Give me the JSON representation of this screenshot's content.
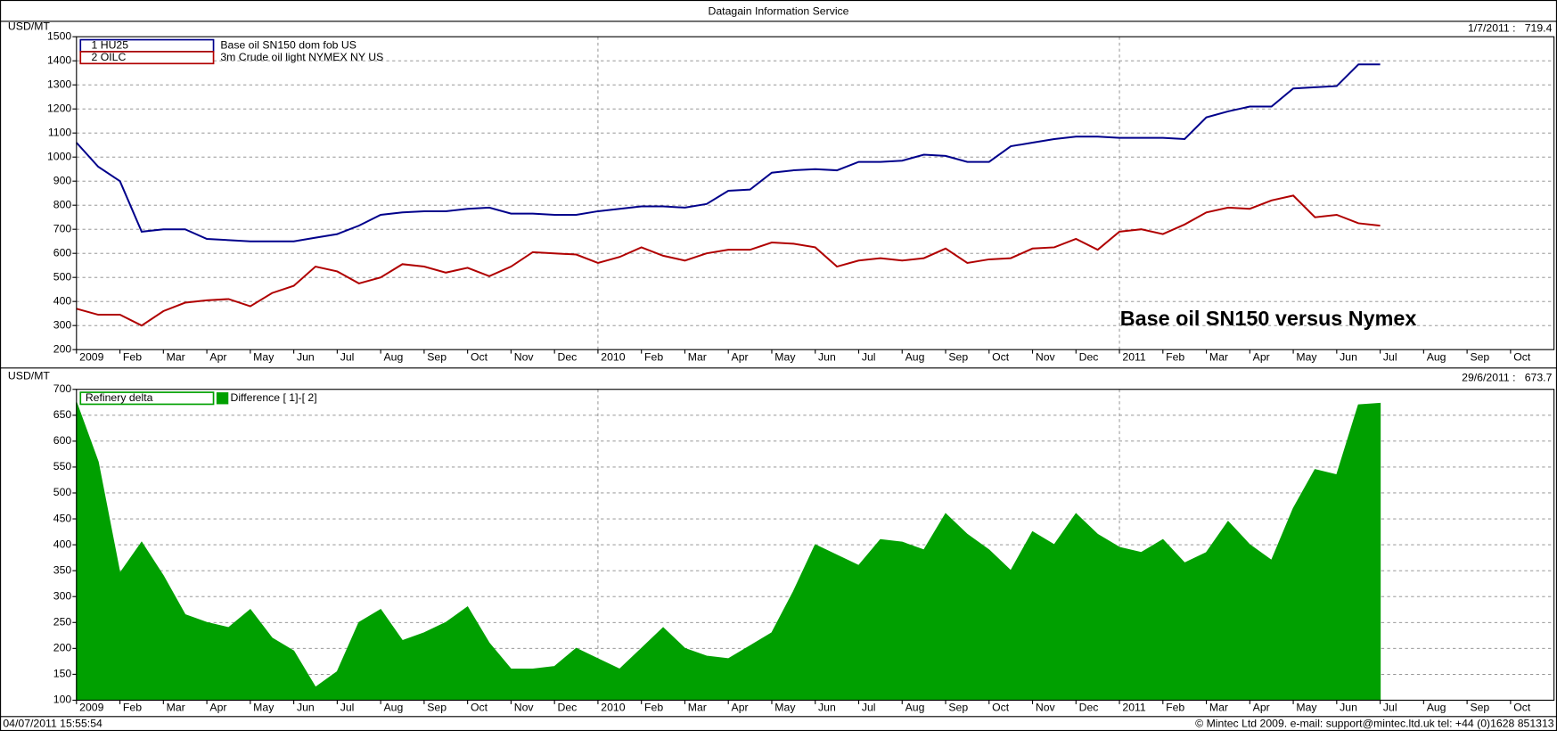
{
  "header": {
    "title": "Datagain Information Service"
  },
  "footer": {
    "timestamp": "04/07/2011 15:55:54",
    "copyright": "© Mintec Ltd 2009. e-mail: support@mintec.ltd.uk tel: +44 (0)1628 851313"
  },
  "chart_data": [
    {
      "type": "line",
      "y_label": "USD/MT",
      "readout": "1/7/2011 :   719.4",
      "annotation": "Base oil SN150 versus Nymex",
      "categories": [
        "2009",
        null,
        "Feb",
        null,
        "Mar",
        null,
        "Apr",
        null,
        "May",
        null,
        "Jun",
        null,
        "Jul",
        null,
        "Aug",
        null,
        "Sep",
        null,
        "Oct",
        null,
        "Nov",
        null,
        "Dec",
        null,
        "2010",
        null,
        "Feb",
        null,
        "Mar",
        null,
        "Apr",
        null,
        "May",
        null,
        "Jun",
        null,
        "Jul",
        null,
        "Aug",
        null,
        "Sep",
        null,
        "Oct",
        null,
        "Nov",
        null,
        "Dec",
        null,
        "2011",
        null,
        "Feb",
        null,
        "Mar",
        null,
        "Apr",
        null,
        "May",
        null,
        "Jun",
        null,
        "Jul",
        null,
        "Aug",
        null,
        "Sep",
        null,
        "Oct",
        null
      ],
      "series": [
        {
          "name": "1 HU25",
          "description": "Base oil SN150 dom fob US",
          "color": "#00008b",
          "values": [
            1060,
            960,
            900,
            690,
            700,
            700,
            660,
            655,
            650,
            650,
            650,
            665,
            680,
            715,
            760,
            770,
            775,
            775,
            785,
            790,
            765,
            765,
            760,
            760,
            775,
            785,
            795,
            795,
            790,
            805,
            860,
            865,
            935,
            945,
            950,
            945,
            980,
            980,
            985,
            1010,
            1005,
            980,
            980,
            1045,
            1060,
            1075,
            1085,
            1085,
            1080,
            1080,
            1080,
            1075,
            1165,
            1190,
            1210,
            1210,
            1285,
            1290,
            1295,
            1385,
            1385,
            null,
            null,
            null,
            null,
            null,
            null,
            null
          ]
        },
        {
          "name": "2 OILC",
          "description": "3m Crude oil light NYMEX NY US",
          "color": "#b00000",
          "values": [
            370,
            345,
            345,
            300,
            360,
            395,
            405,
            410,
            380,
            435,
            465,
            545,
            525,
            475,
            500,
            555,
            545,
            520,
            540,
            505,
            545,
            605,
            600,
            595,
            560,
            585,
            625,
            590,
            570,
            600,
            615,
            615,
            645,
            640,
            625,
            545,
            570,
            580,
            570,
            580,
            620,
            560,
            575,
            580,
            620,
            625,
            660,
            615,
            690,
            700,
            680,
            720,
            770,
            790,
            785,
            820,
            840,
            750,
            760,
            725,
            715,
            null,
            null,
            null,
            null,
            null,
            null,
            null
          ]
        }
      ],
      "ylim": [
        200,
        1500
      ],
      "yticks": [
        200,
        300,
        400,
        500,
        600,
        700,
        800,
        900,
        1000,
        1100,
        1200,
        1300,
        1400,
        1500
      ],
      "grid": true
    },
    {
      "type": "area",
      "y_label": "USD/MT",
      "readout": "29/6/2011 :   673.7",
      "categories": [
        "2009",
        null,
        "Feb",
        null,
        "Mar",
        null,
        "Apr",
        null,
        "May",
        null,
        "Jun",
        null,
        "Jul",
        null,
        "Aug",
        null,
        "Sep",
        null,
        "Oct",
        null,
        "Nov",
        null,
        "Dec",
        null,
        "2010",
        null,
        "Feb",
        null,
        "Mar",
        null,
        "Apr",
        null,
        "May",
        null,
        "Jun",
        null,
        "Jul",
        null,
        "Aug",
        null,
        "Sep",
        null,
        "Oct",
        null,
        "Nov",
        null,
        "Dec",
        null,
        "2011",
        null,
        "Feb",
        null,
        "Mar",
        null,
        "Apr",
        null,
        "May",
        null,
        "Jun",
        null,
        "Jul",
        null,
        "Aug",
        null,
        "Sep",
        null,
        "Oct",
        null
      ],
      "series": [
        {
          "name": "Refinery delta",
          "description": "Difference [ 1]-[ 2]",
          "color": "#00a000",
          "values": [
            675,
            560,
            345,
            405,
            340,
            265,
            250,
            240,
            275,
            220,
            195,
            125,
            155,
            250,
            275,
            215,
            230,
            250,
            280,
            210,
            160,
            160,
            165,
            200,
            180,
            160,
            200,
            240,
            200,
            185,
            180,
            205,
            230,
            310,
            400,
            380,
            360,
            410,
            405,
            390,
            460,
            420,
            390,
            350,
            425,
            400,
            460,
            420,
            395,
            385,
            410,
            365,
            385,
            445,
            400,
            370,
            470,
            545,
            535,
            670,
            673,
            null,
            null,
            null,
            null,
            null,
            null,
            null
          ]
        }
      ],
      "ylim": [
        100,
        700
      ],
      "yticks": [
        100,
        150,
        200,
        250,
        300,
        350,
        400,
        450,
        500,
        550,
        600,
        650,
        700
      ],
      "grid": true
    }
  ]
}
